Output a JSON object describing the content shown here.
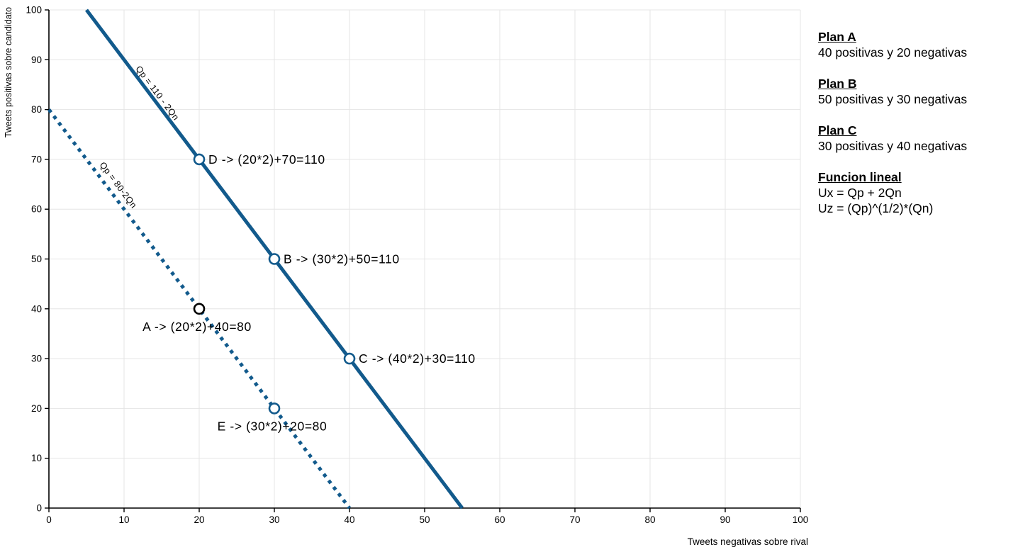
{
  "panel": {
    "blocks": [
      {
        "title": "Plan A",
        "lines": [
          "40 positivas y 20 negativas"
        ]
      },
      {
        "title": "Plan B",
        "lines": [
          "50 positivas y 30 negativas"
        ]
      },
      {
        "title": "Plan C",
        "lines": [
          "30 positivas y 40 negativas"
        ]
      },
      {
        "title": "Funcion lineal",
        "lines": [
          "Ux = Qp + 2Qn",
          "Uz = (Qp)^(1/2)*(Qn)"
        ]
      }
    ]
  },
  "chart_data": {
    "type": "line",
    "title": "",
    "xlabel": "Tweets negativas sobre rival",
    "ylabel": "Tweets positivas sobre candidato",
    "xlim": [
      0,
      100
    ],
    "ylim": [
      0,
      100
    ],
    "xticks": [
      0,
      10,
      20,
      30,
      40,
      50,
      60,
      70,
      80,
      90,
      100
    ],
    "yticks": [
      0,
      10,
      20,
      30,
      40,
      50,
      60,
      70,
      80,
      90,
      100
    ],
    "grid": true,
    "colors": {
      "line_blue": "#125a8c",
      "black": "#000000",
      "grid": "#e5e5e5",
      "axis": "#000000"
    },
    "series": [
      {
        "name": "Qp = 110 - 2Qn",
        "style": "solid",
        "color": "#125a8c",
        "x": [
          5,
          55
        ],
        "y": [
          100,
          0
        ],
        "equation_label": {
          "text": "Qp = 110 - 2Qn",
          "x": 11.5,
          "y": 88.2,
          "color": "#125a8c"
        }
      },
      {
        "name": "Qp = 80-2Qn",
        "style": "dotted",
        "color": "#125a8c",
        "x": [
          0,
          40
        ],
        "y": [
          80,
          0
        ],
        "equation_label": {
          "text": "Qp = 80-2Qn",
          "x": 6.7,
          "y": 68.9,
          "color": "#000000"
        }
      }
    ],
    "points": [
      {
        "id": "D",
        "x": 20,
        "y": 70,
        "color": "#125a8c",
        "label": "D -> (20*2)+70=110",
        "label_pos": "right"
      },
      {
        "id": "B",
        "x": 30,
        "y": 50,
        "color": "#125a8c",
        "label": "B -> (30*2)+50=110",
        "label_pos": "right"
      },
      {
        "id": "C",
        "x": 40,
        "y": 30,
        "color": "#125a8c",
        "label": "C -> (40*2)+30=110",
        "label_pos": "right"
      },
      {
        "id": "A",
        "x": 20,
        "y": 40,
        "color": "#000000",
        "label": "A -> (20*2)+40=80",
        "label_pos": "below"
      },
      {
        "id": "E",
        "x": 30,
        "y": 20,
        "color": "#125a8c",
        "label": "E -> (30*2)+20=80",
        "label_pos": "below"
      }
    ]
  }
}
